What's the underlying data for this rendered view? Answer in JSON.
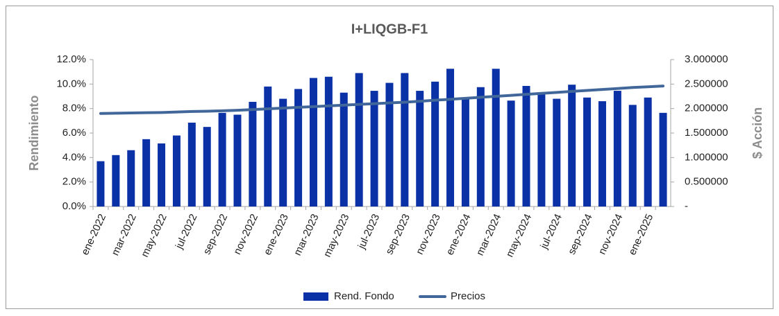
{
  "chart_data": {
    "type": "bar_line",
    "title": "I+LIQGB-F1",
    "y_label": "Rendimiento",
    "y2_label": "$ Acción",
    "categories": [
      "ene-2022",
      null,
      "mar-2022",
      null,
      "may-2022",
      null,
      "jul-2022",
      null,
      "sep-2022",
      null,
      "nov-2022",
      null,
      "ene-2023",
      null,
      "mar-2023",
      null,
      "may-2023",
      null,
      "jul-2023",
      null,
      "sep-2023",
      null,
      "nov-2023",
      null,
      "ene-2024",
      null,
      "mar-2024",
      null,
      "may-2024",
      null,
      "jul-2024",
      null,
      "sep-2024",
      null,
      "nov-2024",
      null,
      "ene-2025",
      null
    ],
    "series": [
      {
        "name": "Rend. Fondo",
        "type": "bar",
        "color": "#0a31a6",
        "axis": "y",
        "values": [
          3.7,
          4.2,
          4.6,
          5.5,
          5.15,
          5.8,
          6.85,
          6.5,
          7.65,
          7.5,
          8.55,
          9.8,
          8.8,
          9.6,
          10.5,
          10.6,
          9.3,
          10.9,
          9.45,
          10.1,
          10.9,
          9.45,
          10.2,
          11.25,
          8.8,
          9.75,
          11.25,
          8.65,
          9.85,
          9.3,
          8.8,
          9.95,
          8.9,
          8.6,
          9.45,
          8.3,
          8.9,
          7.65
        ]
      },
      {
        "name": "Precios",
        "type": "line",
        "color": "#41679a",
        "axis": "y2",
        "values": [
          1.9,
          1.905,
          1.91,
          1.915,
          1.92,
          1.93,
          1.94,
          1.945,
          1.955,
          1.965,
          1.98,
          1.995,
          2.01,
          2.025,
          2.04,
          2.055,
          2.07,
          2.085,
          2.1,
          2.115,
          2.13,
          2.15,
          2.17,
          2.19,
          2.21,
          2.23,
          2.25,
          2.27,
          2.29,
          2.31,
          2.33,
          2.35,
          2.37,
          2.39,
          2.41,
          2.43,
          2.445,
          2.46
        ]
      }
    ],
    "ylim": [
      0,
      12
    ],
    "yticks": [
      {
        "value": 0,
        "label": "0.0%"
      },
      {
        "value": 2,
        "label": "2.0%"
      },
      {
        "value": 4,
        "label": "4.0%"
      },
      {
        "value": 6,
        "label": "6.0%"
      },
      {
        "value": 8,
        "label": "8.0%"
      },
      {
        "value": 10,
        "label": "10.0%"
      },
      {
        "value": 12,
        "label": "12.0%"
      }
    ],
    "y2lim": [
      0,
      3
    ],
    "y2ticks": [
      {
        "value": 0,
        "label": "-"
      },
      {
        "value": 0.5,
        "label": "0.500000"
      },
      {
        "value": 1,
        "label": "1.000000"
      },
      {
        "value": 1.5,
        "label": "1.500000"
      },
      {
        "value": 2,
        "label": "2.000000"
      },
      {
        "value": 2.5,
        "label": "2.500000"
      },
      {
        "value": 3,
        "label": "3.000000"
      }
    ],
    "grid": false,
    "legend": "bottom"
  }
}
